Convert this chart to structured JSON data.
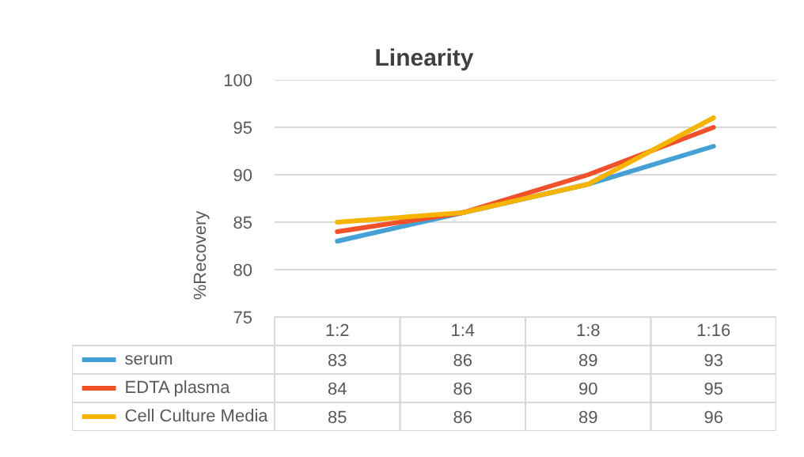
{
  "chart_data": {
    "type": "line",
    "title": "Linearity",
    "ylabel": "%Recovery",
    "categories": [
      "1:2",
      "1:4",
      "1:8",
      "1:16"
    ],
    "series": [
      {
        "name": "serum",
        "color": "#45a0d6",
        "values": [
          83,
          86,
          89,
          93
        ]
      },
      {
        "name": "EDTA plasma",
        "color": "#f0502a",
        "values": [
          84,
          86,
          90,
          95
        ]
      },
      {
        "name": "Cell Culture Media",
        "color": "#f5b400",
        "values": [
          85,
          86,
          89,
          96
        ]
      }
    ],
    "ylim": [
      75,
      100
    ],
    "yticks": [
      75,
      80,
      85,
      90,
      95,
      100
    ],
    "grid": "y",
    "legend": "bottom",
    "data_labels": true,
    "marker": "none",
    "line_style": "solid"
  }
}
